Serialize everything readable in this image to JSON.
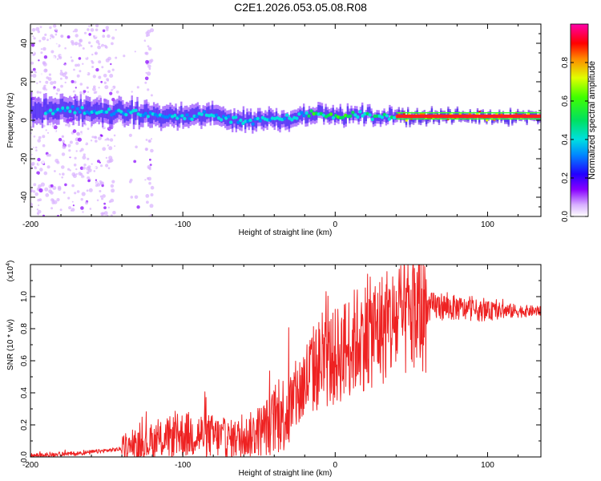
{
  "chart_data": [
    {
      "type": "heatmap",
      "title": "C2E1.2026.053.05.08.R08",
      "xlabel": "Height of straight line (km)",
      "ylabel": "Frequency (Hz)",
      "xlim": [
        -200,
        135
      ],
      "ylim": [
        -50,
        50
      ],
      "xticks": [
        "-200",
        "-100",
        "0",
        "100"
      ],
      "yticks": [
        "-40",
        "-20",
        "0",
        "20",
        "40"
      ],
      "ridge": {
        "x": [
          -195,
          -185,
          -175,
          -165,
          -155,
          -145,
          -135,
          -125,
          -115,
          -105,
          -95,
          -85,
          -75,
          -65,
          -55,
          -45,
          -35,
          -25,
          -15,
          -5,
          5,
          15,
          25,
          35,
          45,
          55,
          65,
          75,
          85,
          95,
          105,
          115,
          130
        ],
        "y": [
          5,
          5,
          6,
          5,
          4,
          4,
          4,
          3,
          2,
          2,
          2,
          3,
          2,
          0,
          0,
          1,
          0,
          2,
          4,
          3,
          2,
          3,
          2,
          2,
          2,
          2,
          2,
          2,
          2,
          2,
          2,
          2,
          2
        ]
      },
      "colorbar": {
        "label": "Normalized spectral amplitude",
        "range": [
          0,
          1
        ],
        "ticks": [
          "0.0",
          "0.2",
          "0.4",
          "0.6",
          "0.8"
        ]
      }
    },
    {
      "type": "line",
      "xlabel": "Height of straight line (km)",
      "ylabel": "SNR (10 * v/v)",
      "yscale_label": "(x10",
      "yscale_exp": "4",
      "xlim": [
        -200,
        135
      ],
      "ylim": [
        0,
        1.2
      ],
      "xticks": [
        "-200",
        "-100",
        "0",
        "100"
      ],
      "yticks": [
        "0.0",
        "0.2",
        "0.4",
        "0.6",
        "0.8",
        "1.0"
      ],
      "series": [
        {
          "name": "SNR",
          "color": "#ee2222",
          "x": [
            -200,
            -190,
            -180,
            -170,
            -160,
            -150,
            -140,
            -130,
            -120,
            -110,
            -100,
            -90,
            -80,
            -70,
            -60,
            -50,
            -40,
            -30,
            -25,
            -20,
            -15,
            -10,
            -5,
            0,
            5,
            10,
            15,
            20,
            25,
            30,
            35,
            40,
            45,
            50,
            55,
            60,
            65,
            70,
            75,
            80,
            85,
            90,
            95,
            100,
            110,
            120,
            135
          ],
          "y": [
            0.01,
            0.01,
            0.02,
            0.02,
            0.03,
            0.04,
            0.05,
            0.07,
            0.09,
            0.12,
            0.14,
            0.14,
            0.13,
            0.11,
            0.12,
            0.16,
            0.22,
            0.31,
            0.38,
            0.46,
            0.54,
            0.58,
            0.6,
            0.62,
            0.66,
            0.7,
            0.74,
            0.76,
            0.78,
            0.8,
            0.82,
            0.84,
            0.86,
            0.88,
            0.9,
            0.92,
            0.94,
            0.94,
            0.93,
            0.93,
            0.92,
            0.92,
            0.91,
            0.91,
            0.91,
            0.91,
            0.91
          ]
        }
      ]
    }
  ]
}
